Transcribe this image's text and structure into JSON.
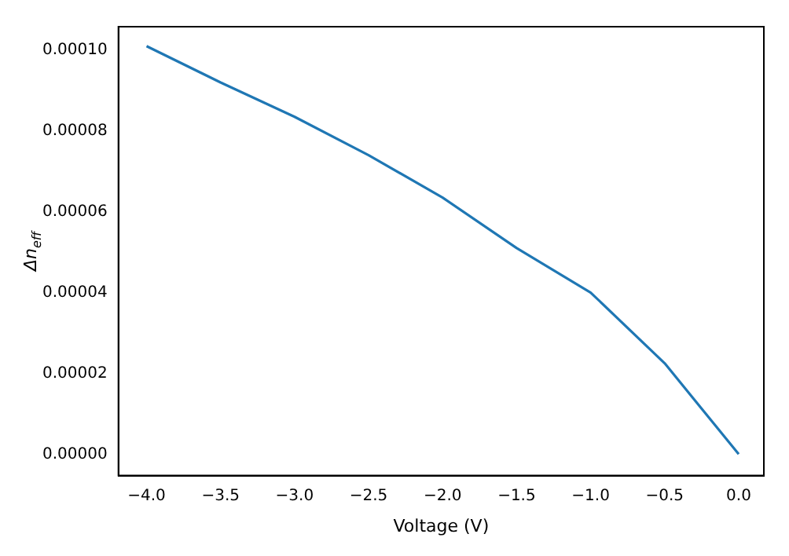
{
  "chart_data": {
    "type": "line",
    "xlabel": "Voltage (V)",
    "ylabel": "Δn$_{eff}$",
    "x": [
      -4,
      -3.5,
      -3,
      -2.5,
      -2,
      -1.5,
      -1,
      -0.5,
      0
    ],
    "series": [
      {
        "color": "#1f77b4",
        "values": [
          0.000101,
          9.2e-05,
          8.35e-05,
          7.4e-05,
          6.35e-05,
          5.1e-05,
          4e-05,
          2.25e-05,
          0
        ]
      }
    ],
    "xlim": [
      -4.19,
      0.17
    ],
    "ylim": [
      -5.3e-06,
      0.0001058
    ],
    "xticks": [
      {
        "value": -4,
        "label": "−4.0"
      },
      {
        "value": -3.5,
        "label": "−3.5"
      },
      {
        "value": -3,
        "label": "−3.0"
      },
      {
        "value": -2.5,
        "label": "−2.5"
      },
      {
        "value": -2,
        "label": "−2.0"
      },
      {
        "value": -1.5,
        "label": "−1.5"
      },
      {
        "value": -1,
        "label": "−1.0"
      },
      {
        "value": -0.5,
        "label": "−0.5"
      },
      {
        "value": 0,
        "label": "0.0"
      }
    ],
    "yticks": [
      {
        "value": 0,
        "label": "0.00000"
      },
      {
        "value": 2e-05,
        "label": "0.00002"
      },
      {
        "value": 4e-05,
        "label": "0.00004"
      },
      {
        "value": 6e-05,
        "label": "0.00006"
      },
      {
        "value": 8e-05,
        "label": "0.00008"
      },
      {
        "value": 0.0001,
        "label": "0.00010"
      }
    ],
    "grid": false,
    "legend": false,
    "marker": "none",
    "line_style": "solid"
  }
}
